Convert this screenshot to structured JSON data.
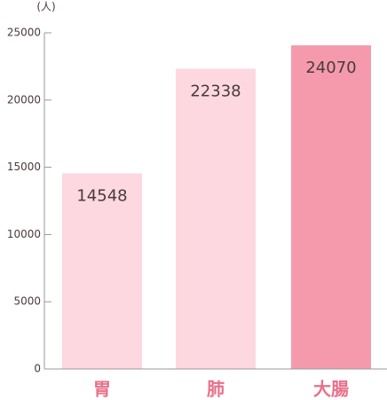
{
  "chart_data": {
    "type": "bar",
    "y_label": "(人)",
    "categories": [
      "胃",
      "肺",
      "大腸"
    ],
    "values": [
      14548,
      22338,
      24070
    ],
    "colors": [
      "#fdd8e0",
      "#fdd8e0",
      "#f59aad"
    ],
    "ylim": [
      0,
      25000
    ],
    "yticks": [
      0,
      5000,
      10000,
      15000,
      20000,
      25000
    ]
  }
}
